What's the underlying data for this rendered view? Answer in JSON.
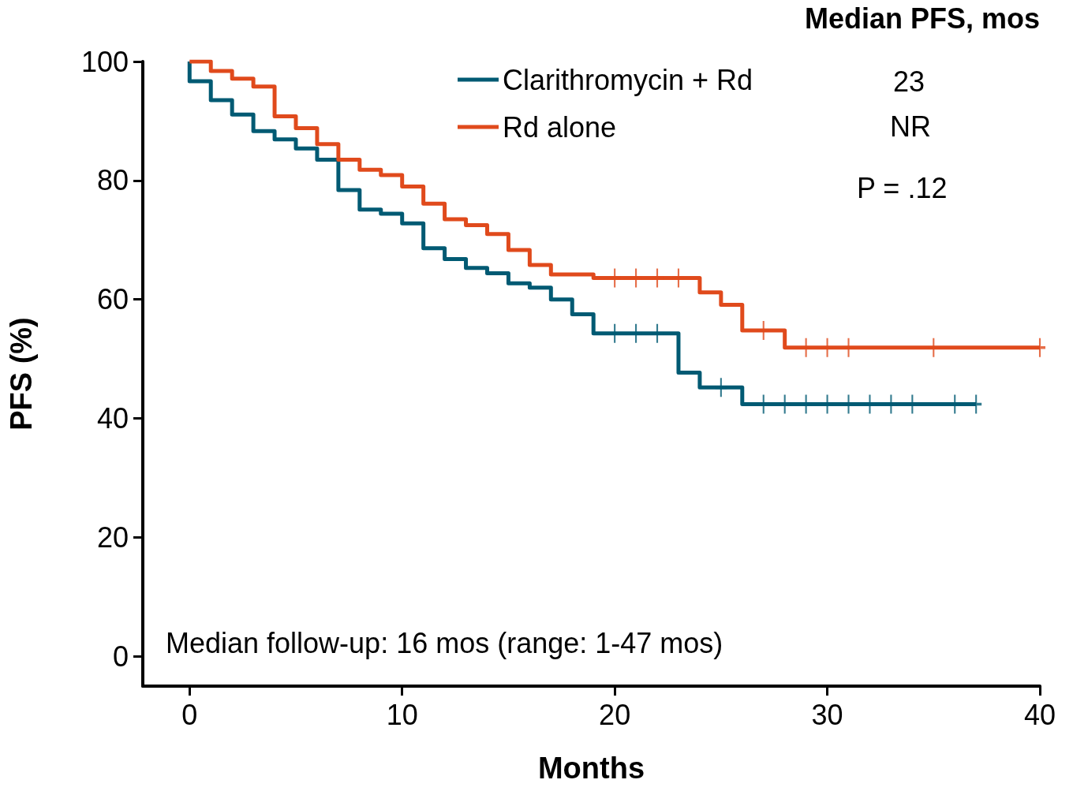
{
  "chart_data": {
    "type": "step",
    "xlabel": "Months",
    "ylabel": "PFS (%)",
    "annotations": [
      "Median PFS, mos",
      "23",
      "NR",
      "P = .12",
      "Median follow-up: 16 mos (range: 1-47 mos)"
    ],
    "xlim": [
      -2.2,
      40
    ],
    "xticks": [
      0,
      10,
      20,
      30,
      40
    ],
    "ylim": [
      -5,
      100
    ],
    "yticks": [
      0,
      20,
      40,
      60,
      80,
      100
    ],
    "grid": false,
    "legend": "top",
    "line_style": "solid",
    "series": [
      {
        "name": "Clarithromycin + Rd",
        "color": "#005a73",
        "x": [
          0,
          0,
          1,
          2,
          3,
          4,
          5,
          6,
          7,
          8,
          9,
          10,
          11,
          12,
          13,
          14,
          15,
          16,
          17,
          18,
          19,
          23,
          24,
          26,
          37
        ],
        "values": [
          100,
          96.7,
          93.5,
          91.1,
          88.3,
          86.9,
          85.4,
          83.5,
          78.4,
          75.1,
          74.4,
          72.8,
          68.6,
          66.8,
          65.3,
          64.4,
          62.7,
          62,
          60,
          57.5,
          54.3,
          47.7,
          45.2,
          42.4,
          42.4
        ]
      },
      {
        "name": "Rd alone",
        "color": "#e04a1c",
        "x": [
          0,
          1,
          2,
          3,
          4,
          5,
          6,
          7,
          8,
          9,
          10,
          11,
          12,
          13,
          14,
          15,
          16,
          17,
          19,
          24,
          25,
          26,
          28,
          40
        ],
        "values": [
          100,
          98.4,
          97.1,
          95.8,
          90.8,
          88.8,
          86.1,
          83.5,
          81.8,
          80.9,
          79,
          76.1,
          73.5,
          72.5,
          71,
          68.3,
          65.8,
          64.2,
          63.6,
          61.2,
          59.1,
          54.8,
          51.9,
          51.9
        ]
      },
      {
        "type": "scatter",
        "marker": "cross",
        "color": "#005a73",
        "x": [
          20,
          21,
          22,
          25,
          27,
          28,
          29,
          30,
          31,
          32,
          33,
          34,
          36,
          37
        ],
        "values": [
          54.3,
          54.3,
          54.3,
          45.2,
          42.4,
          42.4,
          42.4,
          42.4,
          42.4,
          42.4,
          42.4,
          42.4,
          42.4,
          42.4
        ]
      },
      {
        "type": "scatter",
        "marker": "cross",
        "color": "#e04a1c",
        "x": [
          20,
          21,
          22,
          23,
          27,
          29,
          30,
          31,
          35,
          40
        ],
        "values": [
          63.6,
          63.6,
          63.6,
          63.6,
          54.8,
          51.9,
          51.9,
          51.9,
          51.9,
          51.9
        ]
      }
    ]
  }
}
